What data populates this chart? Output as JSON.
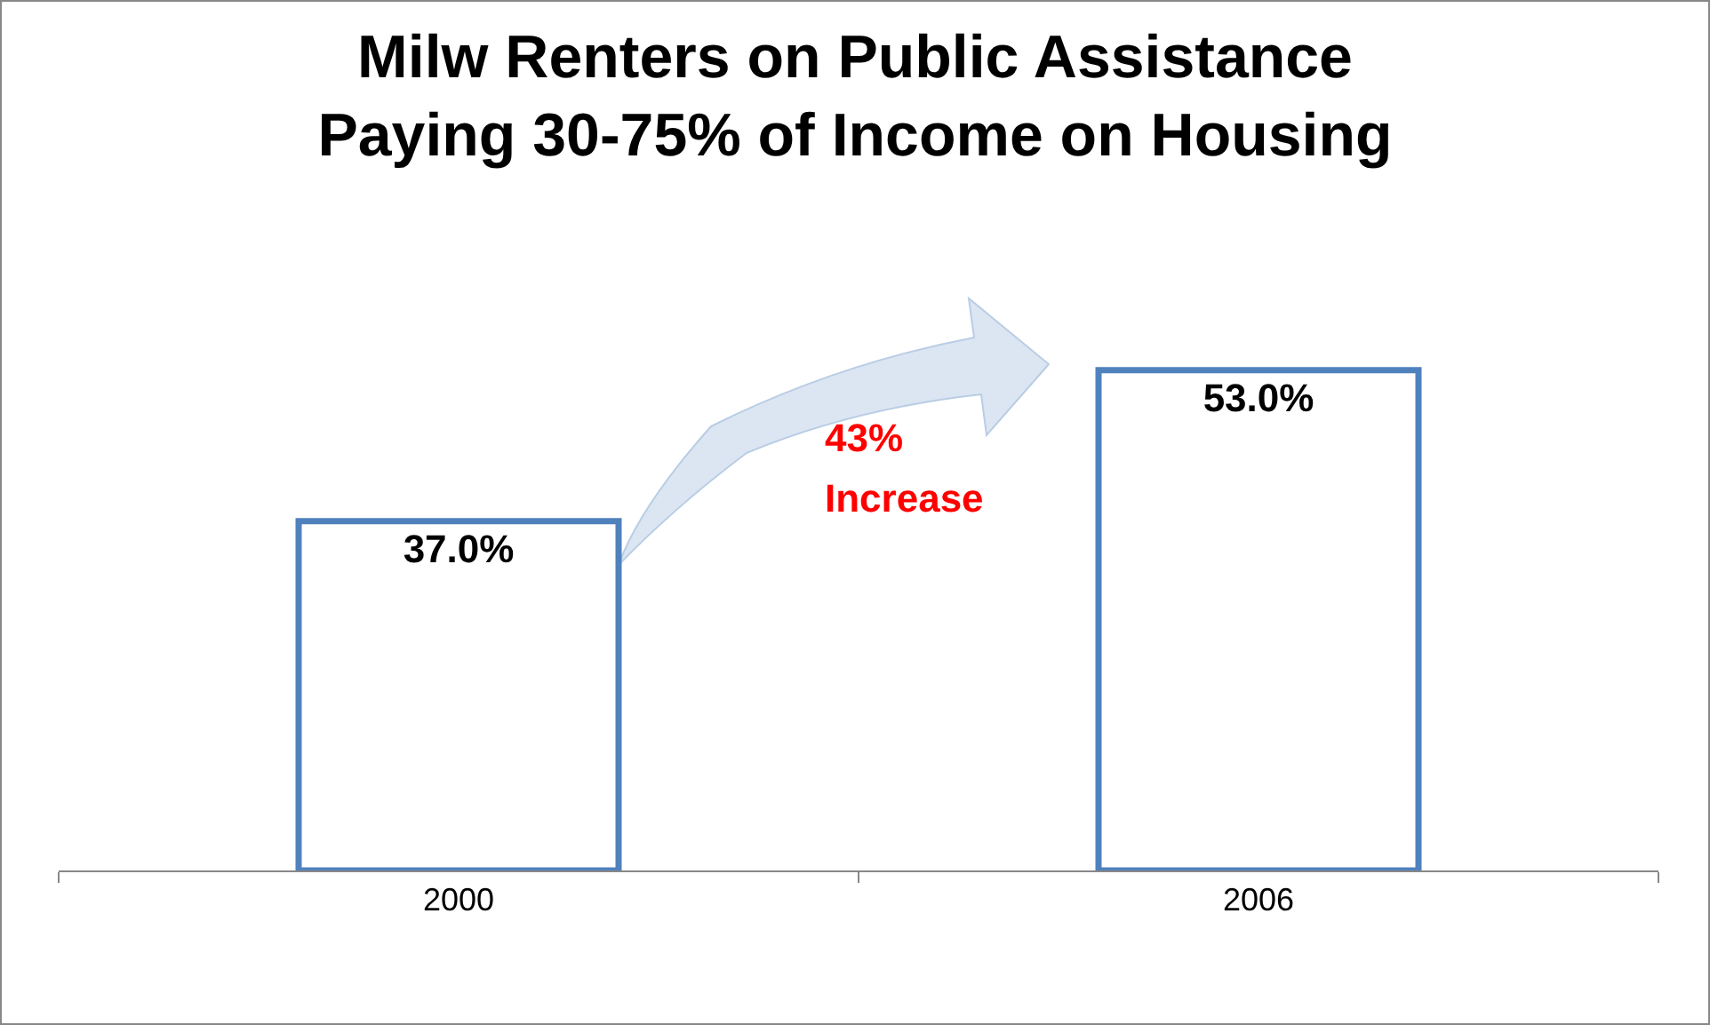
{
  "chart_data": {
    "type": "bar",
    "title": "Milw Renters on Public Assistance\nPaying 30-75% of Income on Housing",
    "categories": [
      "2000",
      "2006"
    ],
    "series": [
      {
        "color": "#4f81bd",
        "values": [
          37.0,
          53.0
        ],
        "value_labels": [
          "37.0%",
          "53.0%"
        ]
      }
    ],
    "tick_labels": "x",
    "legend": false,
    "annotations": [
      "43%",
      "Increase"
    ]
  }
}
